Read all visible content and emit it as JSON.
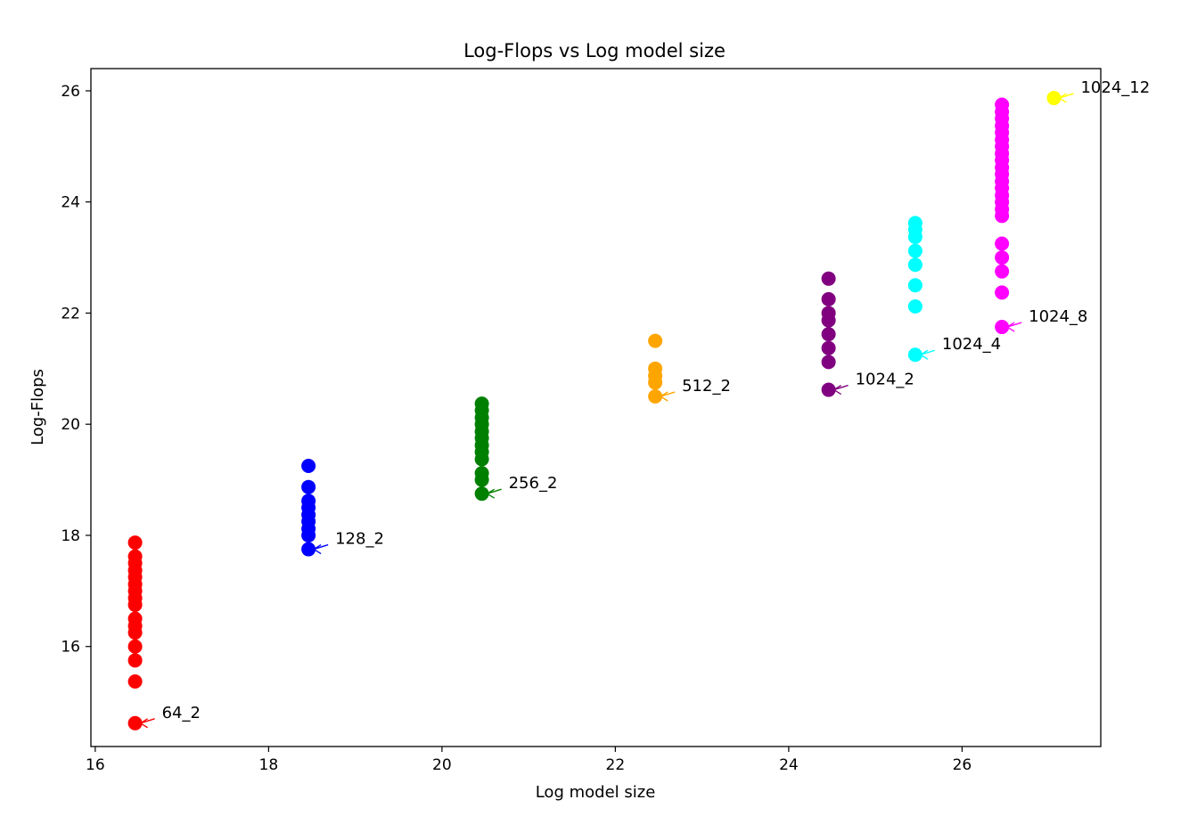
{
  "chart_data": {
    "type": "scatter",
    "title": "Log-Flops vs Log model size",
    "xlabel": "Log model size",
    "ylabel": "Log-Flops",
    "xlim": [
      15.95,
      27.6
    ],
    "ylim": [
      14.2,
      26.4
    ],
    "xticks": [
      16,
      18,
      20,
      22,
      24,
      26
    ],
    "yticks": [
      16,
      18,
      20,
      22,
      24,
      26
    ],
    "grid": false,
    "series": [
      {
        "color": "#ff0000",
        "x": 16.46,
        "y": [
          14.62,
          15.37,
          15.75,
          16.0,
          16.25,
          16.37,
          16.5,
          16.75,
          16.87,
          17.0,
          17.12,
          17.25,
          17.37,
          17.5,
          17.62,
          17.87
        ],
        "annotation": {
          "label": "64_2",
          "x": 16.46,
          "y": 14.62
        }
      },
      {
        "color": "#0000ff",
        "x": 18.46,
        "y": [
          17.75,
          18.0,
          18.12,
          18.25,
          18.37,
          18.5,
          18.62,
          18.87,
          19.25
        ],
        "annotation": {
          "label": "128_2",
          "x": 18.46,
          "y": 17.75
        }
      },
      {
        "color": "#008000",
        "x": 20.46,
        "y": [
          18.75,
          19.0,
          19.12,
          19.37,
          19.5,
          19.62,
          19.75,
          19.87,
          20.0,
          20.12,
          20.25,
          20.37
        ],
        "annotation": {
          "label": "256_2",
          "x": 20.46,
          "y": 18.75
        }
      },
      {
        "color": "#ffa500",
        "x": 22.46,
        "y": [
          20.5,
          20.75,
          20.87,
          21.0,
          21.5
        ],
        "annotation": {
          "label": "512_2",
          "x": 22.46,
          "y": 20.5
        }
      },
      {
        "color": "#800080",
        "x": 24.46,
        "y": [
          20.62,
          21.12,
          21.37,
          21.62,
          21.87,
          22.0,
          22.25,
          22.62
        ],
        "annotation": {
          "label": "1024_2",
          "x": 24.46,
          "y": 20.62
        }
      },
      {
        "color": "#00ffff",
        "x": 25.46,
        "y": [
          21.25,
          22.12,
          22.5,
          22.87,
          23.12,
          23.37,
          23.5,
          23.62
        ],
        "annotation": {
          "label": "1024_4",
          "x": 25.46,
          "y": 21.25
        }
      },
      {
        "color": "#ff00ff",
        "x": 26.46,
        "y": [
          21.75,
          22.37,
          22.75,
          23.0,
          23.25,
          23.75,
          23.87,
          24.0,
          24.12,
          24.25,
          24.37,
          24.5,
          24.62,
          24.75,
          24.87,
          25.0,
          25.12,
          25.25,
          25.37,
          25.5,
          25.62,
          25.75
        ],
        "annotation": {
          "label": "1024_8",
          "x": 26.46,
          "y": 21.75
        }
      },
      {
        "color": "#ffff00",
        "x": 27.06,
        "y": [
          25.87
        ],
        "annotation": {
          "label": "1024_12",
          "x": 27.06,
          "y": 25.87
        }
      }
    ]
  }
}
